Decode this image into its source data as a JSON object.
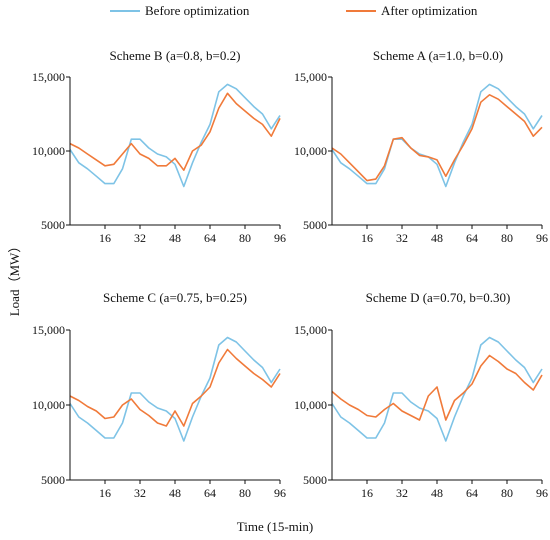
{
  "axis_labels": {
    "y": "Load（MW）",
    "x": "Time (15-min)"
  },
  "legend": [
    {
      "label": "Before optimization",
      "color": "#7ec3e6"
    },
    {
      "label": "After optimization",
      "color": "#f07a3a"
    }
  ],
  "chart_data": [
    {
      "type": "line",
      "title": "Scheme B (a=0.8, b=0.2)",
      "xlim": [
        0,
        96
      ],
      "ylim": [
        5000,
        15000
      ],
      "xticks": [
        16,
        32,
        48,
        64,
        80,
        96
      ],
      "yticks": [
        5000,
        10000,
        15000
      ],
      "ytick_labels": [
        "5000",
        "10,000",
        "15,000"
      ],
      "x": [
        0,
        4,
        8,
        12,
        16,
        20,
        24,
        28,
        32,
        36,
        40,
        44,
        48,
        52,
        56,
        60,
        64,
        68,
        72,
        76,
        80,
        84,
        88,
        92,
        96
      ],
      "series": [
        {
          "name": "Before optimization",
          "values": [
            10100,
            9200,
            8800,
            8300,
            7800,
            7800,
            8800,
            10800,
            10800,
            10200,
            9800,
            9600,
            9100,
            7600,
            9200,
            10600,
            11800,
            14000,
            14500,
            14200,
            13600,
            13000,
            12500,
            11500,
            12400
          ]
        },
        {
          "name": "After optimization",
          "values": [
            10500,
            10200,
            9800,
            9400,
            9000,
            9100,
            9800,
            10500,
            9800,
            9500,
            9000,
            9000,
            9500,
            8700,
            10000,
            10400,
            11300,
            12900,
            13900,
            13200,
            12700,
            12200,
            11800,
            11000,
            12200
          ]
        }
      ]
    },
    {
      "type": "line",
      "title": "Scheme A (a=1.0, b=0.0)",
      "xlim": [
        0,
        96
      ],
      "ylim": [
        5000,
        15000
      ],
      "xticks": [
        16,
        32,
        48,
        64,
        80,
        96
      ],
      "yticks": [
        5000,
        10000,
        15000
      ],
      "ytick_labels": [
        "5000",
        "10,000",
        "15,000"
      ],
      "x": [
        0,
        4,
        8,
        12,
        16,
        20,
        24,
        28,
        32,
        36,
        40,
        44,
        48,
        52,
        56,
        60,
        64,
        68,
        72,
        76,
        80,
        84,
        88,
        92,
        96
      ],
      "series": [
        {
          "name": "Before optimization",
          "values": [
            10100,
            9200,
            8800,
            8300,
            7800,
            7800,
            8800,
            10800,
            10800,
            10200,
            9800,
            9600,
            9100,
            7600,
            9200,
            10600,
            11800,
            14000,
            14500,
            14200,
            13600,
            13000,
            12500,
            11500,
            12400
          ]
        },
        {
          "name": "After optimization",
          "values": [
            10200,
            9800,
            9200,
            8600,
            8000,
            8100,
            9000,
            10800,
            10900,
            10200,
            9700,
            9600,
            9400,
            8300,
            9400,
            10400,
            11500,
            13300,
            13800,
            13500,
            13000,
            12500,
            12000,
            11000,
            11600
          ]
        }
      ]
    },
    {
      "type": "line",
      "title": "Scheme C (a=0.75, b=0.25)",
      "xlim": [
        0,
        96
      ],
      "ylim": [
        5000,
        15000
      ],
      "xticks": [
        16,
        32,
        48,
        64,
        80,
        96
      ],
      "yticks": [
        5000,
        10000,
        15000
      ],
      "ytick_labels": [
        "5000",
        "10,000",
        "15,000"
      ],
      "x": [
        0,
        4,
        8,
        12,
        16,
        20,
        24,
        28,
        32,
        36,
        40,
        44,
        48,
        52,
        56,
        60,
        64,
        68,
        72,
        76,
        80,
        84,
        88,
        92,
        96
      ],
      "series": [
        {
          "name": "Before optimization",
          "values": [
            10100,
            9200,
            8800,
            8300,
            7800,
            7800,
            8800,
            10800,
            10800,
            10200,
            9800,
            9600,
            9100,
            7600,
            9200,
            10600,
            11800,
            14000,
            14500,
            14200,
            13600,
            13000,
            12500,
            11500,
            12400
          ]
        },
        {
          "name": "After optimization",
          "values": [
            10600,
            10300,
            9900,
            9600,
            9100,
            9200,
            10000,
            10400,
            9700,
            9300,
            8800,
            8600,
            9600,
            8600,
            10100,
            10600,
            11200,
            12800,
            13700,
            13100,
            12600,
            12100,
            11700,
            11200,
            12100
          ]
        }
      ]
    },
    {
      "type": "line",
      "title": "Scheme D (a=0.70, b=0.30)",
      "xlim": [
        0,
        96
      ],
      "ylim": [
        5000,
        15000
      ],
      "xticks": [
        16,
        32,
        48,
        64,
        80,
        96
      ],
      "yticks": [
        5000,
        10000,
        15000
      ],
      "ytick_labels": [
        "5000",
        "10,000",
        "15,000"
      ],
      "x": [
        0,
        4,
        8,
        12,
        16,
        20,
        24,
        28,
        32,
        36,
        40,
        44,
        48,
        52,
        56,
        60,
        64,
        68,
        72,
        76,
        80,
        84,
        88,
        92,
        96
      ],
      "series": [
        {
          "name": "Before optimization",
          "values": [
            10100,
            9200,
            8800,
            8300,
            7800,
            7800,
            8800,
            10800,
            10800,
            10200,
            9800,
            9600,
            9100,
            7600,
            9200,
            10600,
            11800,
            14000,
            14500,
            14200,
            13600,
            13000,
            12500,
            11500,
            12400
          ]
        },
        {
          "name": "After optimization",
          "values": [
            10900,
            10400,
            10000,
            9700,
            9300,
            9200,
            9700,
            10100,
            9600,
            9300,
            9000,
            10600,
            11200,
            9000,
            10300,
            10800,
            11400,
            12600,
            13300,
            12900,
            12400,
            12100,
            11500,
            11000,
            12000
          ]
        }
      ]
    }
  ]
}
